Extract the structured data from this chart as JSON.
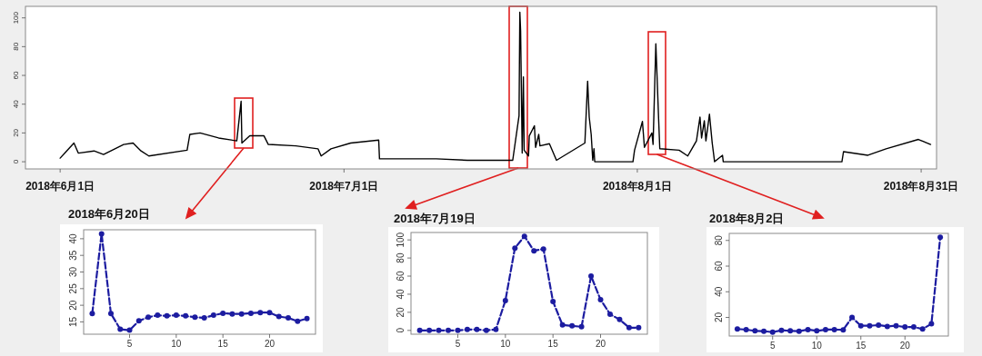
{
  "chart_data": [
    {
      "type": "line",
      "color": "#000000",
      "x": [
        "2018-06-01T00:00",
        "2018-06-01T15:00",
        "2018-06-02T11:00",
        "2018-06-02T22:00",
        "2018-06-04T14:00",
        "2018-06-05T14:00",
        "2018-06-07T17:00",
        "2018-06-08T17:00",
        "2018-06-09T13:00",
        "2018-06-10T09:00",
        "2018-06-14T10:00",
        "2018-06-14T17:00",
        "2018-06-15T19:00",
        "2018-06-17T18:00",
        "2018-06-19T16:00",
        "2018-06-20T03:00",
        "2018-06-20T05:00",
        "2018-06-21T01:00",
        "2018-06-22T13:00",
        "2018-06-23T00:00",
        "2018-06-25T22:00",
        "2018-06-28T06:00",
        "2018-06-28T14:00",
        "2018-06-29T15:00",
        "2018-07-01T17:00",
        "2018-07-04T16:00",
        "2018-07-04T18:00",
        "2018-07-10T18:00",
        "2018-07-14T01:00",
        "2018-07-16T15:00",
        "2018-07-18T20:00",
        "2018-07-19T12:00",
        "2018-07-19T14:00",
        "2018-07-19T16:00",
        "2018-07-19T20:00",
        "2018-07-19T23:00",
        "2018-07-20T01:00",
        "2018-07-20T12:00",
        "2018-07-20T14:00",
        "2018-07-21T03:00",
        "2018-07-21T06:00",
        "2018-07-21T14:00",
        "2018-07-21T17:00",
        "2018-07-22T17:00",
        "2018-07-23T11:00",
        "2018-07-26T11:00",
        "2018-07-26T18:00",
        "2018-07-26T22:00",
        "2018-07-27T03:00",
        "2018-07-27T07:00",
        "2018-07-27T10:00",
        "2018-07-27T12:00",
        "2018-07-31T13:00",
        "2018-07-31T17:00",
        "2018-08-01T13:00",
        "2018-08-01T18:00",
        "2018-08-02T13:00",
        "2018-08-02T16:00",
        "2018-08-02T23:00",
        "2018-08-03T02:00",
        "2018-08-03T06:00",
        "2018-08-03T09:00",
        "2018-08-05T10:00",
        "2018-08-06T08:00",
        "2018-08-07T06:00",
        "2018-08-07T15:00",
        "2018-08-07T19:00",
        "2018-08-08T02:00",
        "2018-08-08T06:00",
        "2018-08-08T15:00",
        "2018-08-08T22:00",
        "2018-08-09T04:00",
        "2018-08-10T00:00",
        "2018-08-10T02:00",
        "2018-08-22T15:00",
        "2018-08-22T19:00",
        "2018-08-25T09:00",
        "2018-08-27T07:00",
        "2018-08-30T17:00",
        "2018-09-01T00:00"
      ],
      "values": [
        2.5,
        7,
        13,
        6,
        7.5,
        5,
        12,
        13,
        7.5,
        4,
        8,
        19,
        20,
        16.5,
        14.5,
        42,
        13,
        18,
        18,
        12,
        11,
        9,
        4,
        9,
        13,
        15,
        2,
        2,
        1,
        1,
        1,
        32,
        104,
        91,
        6,
        59,
        8,
        4,
        18,
        25,
        10,
        19,
        11,
        12.5,
        1,
        13,
        56,
        31,
        19,
        1,
        9,
        0,
        0,
        8,
        28,
        10,
        20,
        12,
        82,
        60,
        30,
        9,
        8,
        4,
        14.5,
        31,
        16.5,
        28.5,
        14.5,
        33,
        13,
        0,
        4.5,
        0,
        0,
        7,
        4.5,
        9,
        15.5,
        12
      ],
      "xlim": [
        "2018-05-28T08:00",
        "2018-09-01T15:00"
      ],
      "ylim": [
        -5,
        108
      ],
      "yticks": [
        0,
        20,
        40,
        60,
        80,
        100
      ],
      "xticks": [
        {
          "value": "2018-06-01",
          "label": "2018年6月1日"
        },
        {
          "value": "2018-07-01",
          "label": "2018年7月1日"
        },
        {
          "value": "2018-08-01",
          "label": "2018年8月1日"
        },
        {
          "value": "2018-08-31",
          "label": "2018年8月31日"
        }
      ]
    },
    {
      "type": "line",
      "title": "2018年6月20日",
      "color": "#1c1ca0",
      "marker": "circle",
      "line_style": "dashed",
      "x": [
        1,
        2,
        3,
        4,
        5,
        6,
        7,
        8,
        9,
        10,
        11,
        12,
        13,
        14,
        15,
        16,
        17,
        18,
        19,
        20,
        21,
        22,
        23,
        24
      ],
      "values": [
        17.5,
        41.5,
        17.5,
        12.8,
        12.5,
        15.3,
        16.4,
        17,
        16.8,
        17,
        16.8,
        16.4,
        16.2,
        17,
        17.6,
        17.4,
        17.4,
        17.6,
        17.8,
        17.8,
        16.6,
        16.2,
        15.2,
        16
      ],
      "xlim": [
        0.08,
        24.92
      ],
      "ylim": [
        11.3,
        42.7
      ],
      "xticks": [
        5,
        10,
        15,
        20
      ],
      "yticks": [
        15,
        20,
        25,
        30,
        35,
        40
      ]
    },
    {
      "type": "line",
      "title": "2018年7月19日",
      "color": "#1c1ca0",
      "marker": "circle",
      "line_style": "dashed",
      "x": [
        1,
        2,
        3,
        4,
        5,
        6,
        7,
        8,
        9,
        10,
        11,
        12,
        13,
        14,
        15,
        16,
        17,
        18,
        19,
        20,
        21,
        22,
        23,
        24
      ],
      "values": [
        0,
        0,
        0,
        0,
        0,
        1,
        1,
        0,
        1,
        33,
        91,
        104,
        88,
        90,
        32,
        6,
        5,
        4,
        60,
        34,
        18,
        12,
        3,
        3
      ],
      "xlim": [
        0.08,
        24.92
      ],
      "ylim": [
        -4.2,
        108.2
      ],
      "xticks": [
        5,
        10,
        15,
        20
      ],
      "yticks": [
        0,
        20,
        40,
        60,
        80,
        100
      ]
    },
    {
      "type": "line",
      "title": "2018年8月2日",
      "color": "#1c1ca0",
      "marker": "circle",
      "line_style": "dashed",
      "x": [
        1,
        2,
        3,
        4,
        5,
        6,
        7,
        8,
        9,
        10,
        11,
        12,
        13,
        14,
        15,
        16,
        17,
        18,
        19,
        20,
        21,
        22,
        23,
        24
      ],
      "values": [
        11,
        10.5,
        9.5,
        9.3,
        8.5,
        10,
        9.5,
        9.3,
        10.5,
        9.5,
        10.5,
        10.5,
        10.3,
        20,
        13.5,
        13.5,
        14,
        13,
        13.5,
        12.5,
        12.5,
        11,
        15,
        82.5
      ],
      "xlim": [
        0.08,
        24.92
      ],
      "ylim": [
        5.5,
        85.5
      ],
      "xticks": [
        5,
        10,
        15,
        20
      ],
      "yticks": [
        20,
        40,
        60,
        80
      ]
    }
  ]
}
